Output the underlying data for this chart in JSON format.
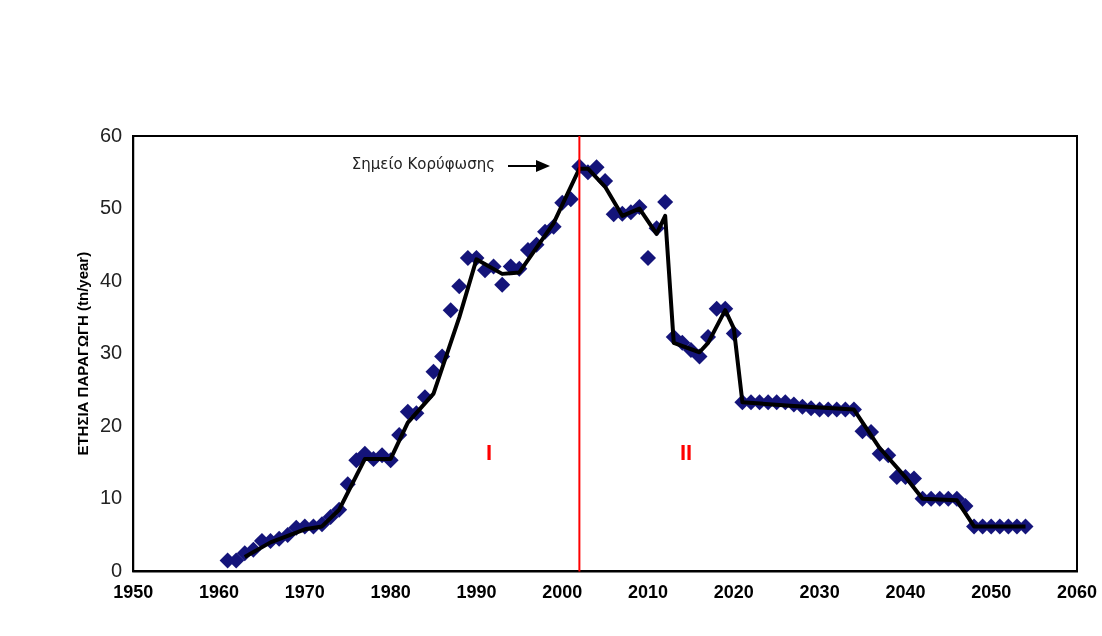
{
  "chart_data": {
    "type": "scatter",
    "ylabel": "ΕΤΗΣΙΑ ΠΑΡΑΓΩΓΗ (tn/year)",
    "xlim": [
      1950,
      2060
    ],
    "xticks": [
      1950,
      1960,
      1970,
      1980,
      1990,
      2000,
      2010,
      2020,
      2030,
      2040,
      2050,
      2060
    ],
    "ylim": [
      0,
      60
    ],
    "yticks": [
      0,
      10,
      20,
      30,
      40,
      50,
      60
    ],
    "grid": false,
    "legend": false,
    "marker": "diamond",
    "series": [
      {
        "color": "#14147a",
        "x": [
          1961,
          1962,
          1963,
          1964,
          1965,
          1966,
          1967,
          1968,
          1969,
          1970,
          1971,
          1972,
          1973,
          1974,
          1975,
          1976,
          1977,
          1978,
          1979,
          1980,
          1981,
          1982,
          1983,
          1984,
          1985,
          1986,
          1987,
          1988,
          1989,
          1990,
          1991,
          1992,
          1993,
          1994,
          1995,
          1996,
          1997,
          1998,
          1999,
          2000,
          2001,
          2002,
          2003,
          2004,
          2005,
          2006,
          2007,
          2008,
          2009,
          2010,
          2011,
          2012,
          2013,
          2014,
          2015,
          2016,
          2017,
          2018,
          2019,
          2020,
          2021,
          2022,
          2023,
          2024,
          2025,
          2026,
          2027,
          2028,
          2029,
          2030,
          2031,
          2032,
          2033,
          2034,
          2035,
          2036,
          2037,
          2038,
          2039,
          2040,
          2041,
          2042,
          2043,
          2044,
          2045,
          2046,
          2047,
          2048,
          2049,
          2050,
          2051,
          2052,
          2053,
          2054
        ],
        "values": [
          1.5,
          1.5,
          2.5,
          3,
          4.2,
          4.2,
          4.5,
          5,
          6,
          6.2,
          6.2,
          6.5,
          7.5,
          8.5,
          12,
          15.3,
          16.2,
          15.5,
          16,
          15.3,
          18.8,
          22,
          21.8,
          24,
          27.5,
          29.6,
          36,
          39.3,
          43.2,
          43.2,
          41.5,
          42,
          39.5,
          42,
          41.7,
          44.3,
          45,
          46.8,
          47.5,
          50.8,
          51.3,
          55.8,
          55,
          55.7,
          53.8,
          49.2,
          49.3,
          49.5,
          50.2,
          43.2,
          47.3,
          50.9,
          32.3,
          31.5,
          30.5,
          29.6,
          32.3,
          36.2,
          36.2,
          32.8,
          23.3,
          23.3,
          23.3,
          23.3,
          23.3,
          23.3,
          23,
          22.7,
          22.5,
          22.3,
          22.3,
          22.3,
          22.3,
          22.3,
          19.3,
          19.2,
          16.2,
          16,
          13,
          13,
          12.8,
          10,
          10,
          10,
          10,
          10,
          9,
          6.2,
          6.2,
          6.2,
          6.2,
          6.2,
          6.2,
          6.2
        ]
      },
      {
        "type": "line",
        "color": "#000000",
        "marker": "none",
        "x": [
          1963,
          1966,
          1970,
          1972,
          1974,
          1977,
          1980,
          1982,
          1985,
          1988,
          1990,
          1993,
          1995,
          1999,
          2002,
          2003,
          2005,
          2007,
          2009,
          2011,
          2012,
          2013,
          2016,
          2017,
          2019,
          2020,
          2021,
          2027,
          2034,
          2037,
          2040,
          2042,
          2046,
          2048,
          2054
        ],
        "values": [
          2,
          4,
          5.8,
          6.2,
          8.5,
          15.5,
          15.5,
          20.5,
          24.5,
          35,
          43,
          41,
          41.2,
          48,
          55.5,
          55.5,
          53,
          49,
          50,
          46.5,
          49,
          31.5,
          30.2,
          31.5,
          36,
          33.5,
          23.3,
          22.8,
          22.3,
          17,
          13,
          10,
          9.8,
          6.2,
          6.2
        ]
      }
    ],
    "ref_lines": [
      {
        "axis": "x",
        "value": 2002,
        "color": "#ff0000"
      }
    ],
    "annotations": [
      "Σημείο Κορύφωσης",
      "I",
      "II"
    ]
  }
}
